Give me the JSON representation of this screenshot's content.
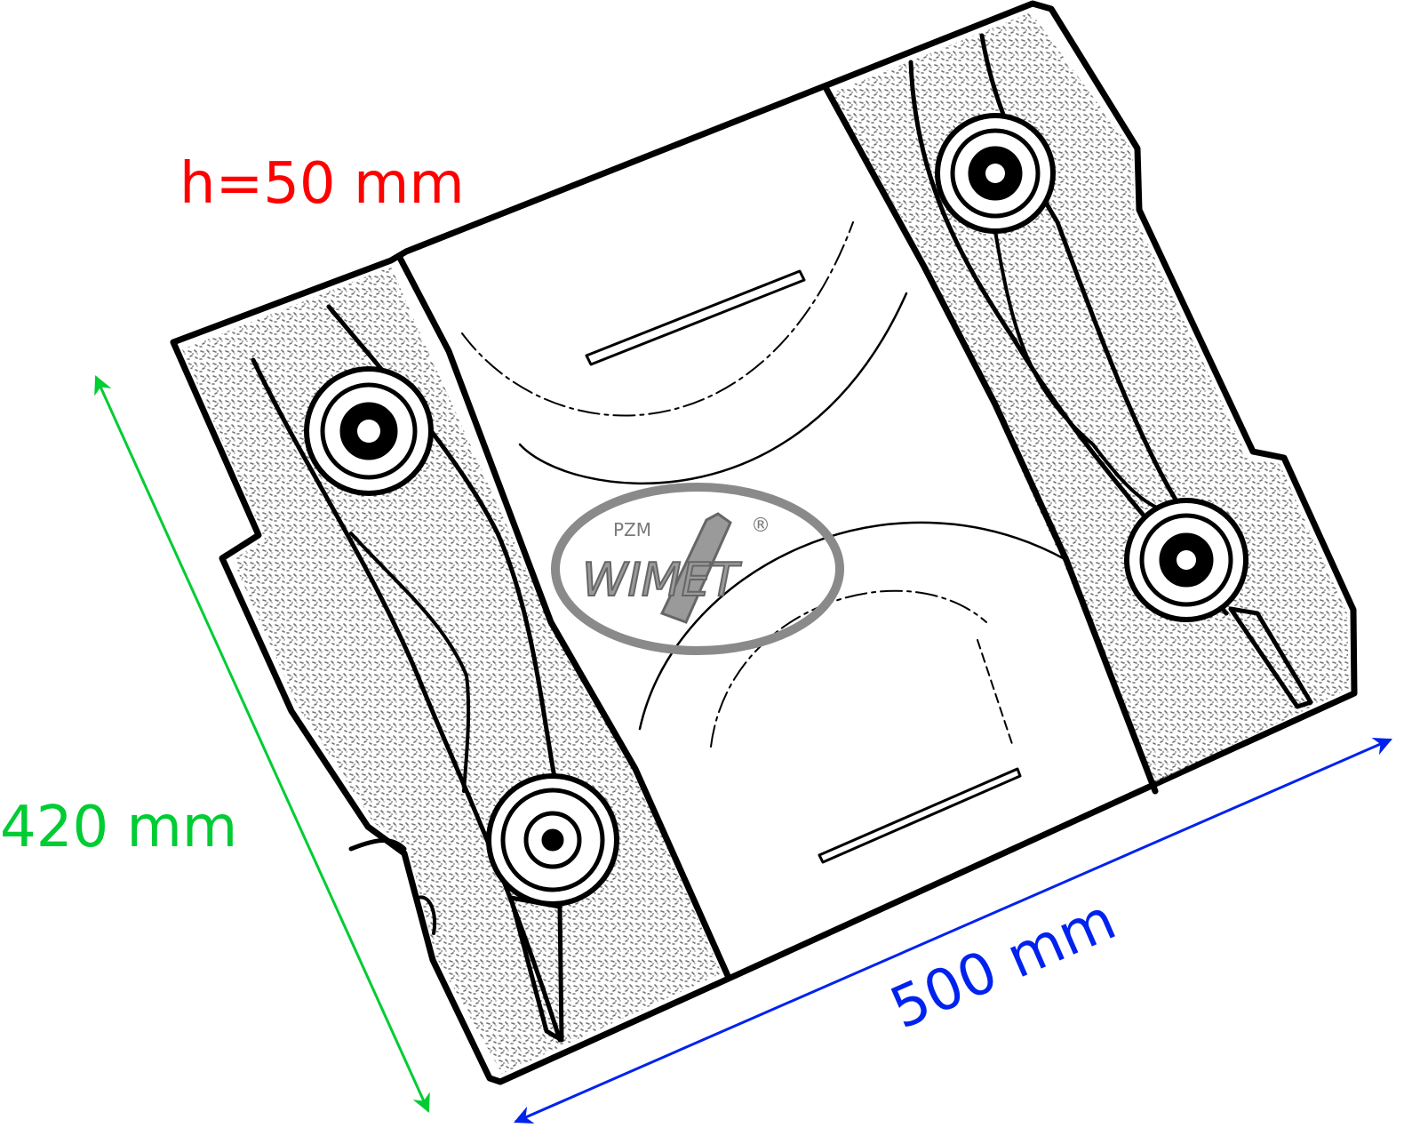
{
  "dimensions": {
    "height_label": "h=50 mm",
    "width_label": "420 mm",
    "length_label": "500 mm"
  },
  "logo": {
    "brand": "WIMET",
    "prefix": "PZM",
    "trademark": "®"
  },
  "colors": {
    "height": "#ff0000",
    "width": "#00cc33",
    "length": "#0022ee",
    "outline": "#000000",
    "logo": "#8a8a8a"
  },
  "icons": {
    "part": "mounting-plate-drawing-icon",
    "logo": "pzm-wimet-logo-icon"
  }
}
